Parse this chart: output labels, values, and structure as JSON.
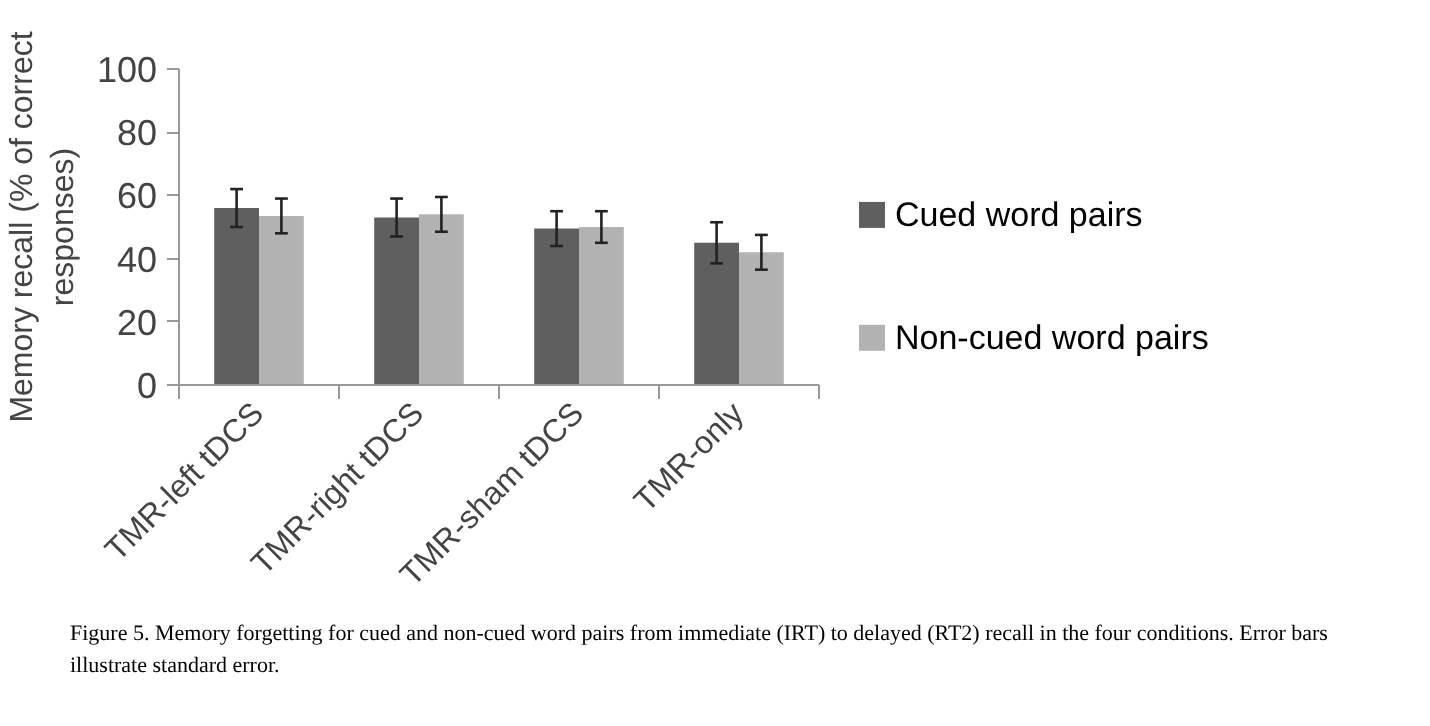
{
  "chart_data": {
    "type": "bar",
    "ylabel": "Memory recall (% of correct responses)",
    "categories": [
      "TMR-left tDCS",
      "TMR-right tDCS",
      "TMR-sham tDCS",
      "TMR-only"
    ],
    "series": [
      {
        "name": "Cued word pairs",
        "color": "#5f5f5f",
        "values": [
          56,
          53,
          49.5,
          45
        ],
        "errors": [
          6,
          6,
          5.5,
          6.5
        ]
      },
      {
        "name": "Non-cued word pairs",
        "color": "#b2b2b2",
        "values": [
          53.5,
          54,
          50,
          42
        ],
        "errors": [
          5.5,
          5.5,
          5,
          5.5
        ]
      }
    ],
    "ylim": [
      0,
      100
    ],
    "yticks": [
      0,
      20,
      40,
      60,
      80,
      100
    ],
    "grid": false,
    "legend": "right",
    "annotations": [
      "Figure 5. Memory forgetting for cued and non-cued word pairs from immediate (IRT) to delayed (RT2) recall in the four conditions. Error bars illustrate standard error."
    ]
  }
}
